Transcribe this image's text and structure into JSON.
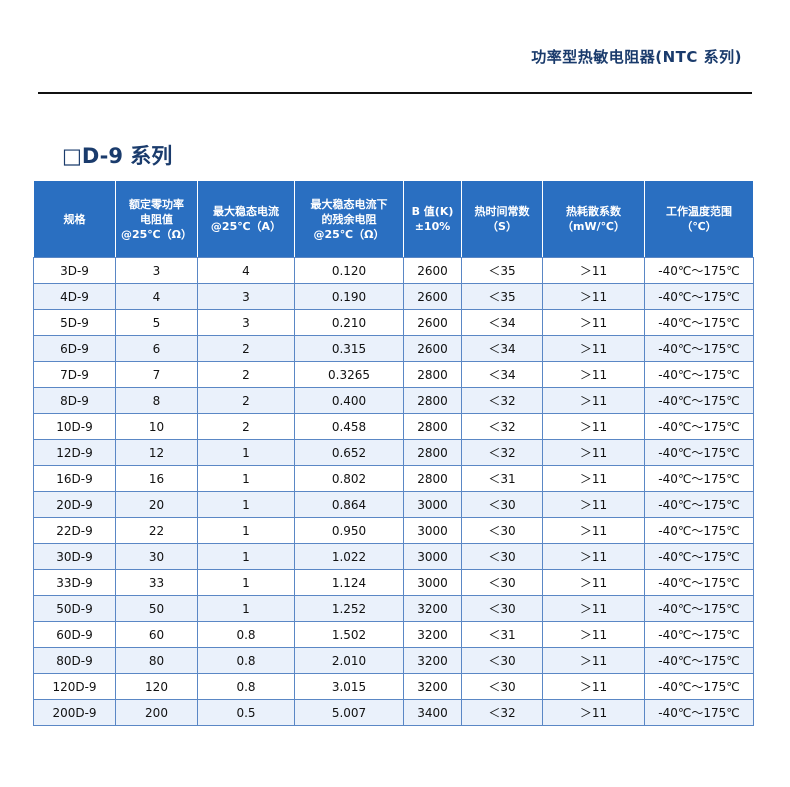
{
  "header": {
    "title": "功率型热敏电阻器(NTC 系列)"
  },
  "section": {
    "title": "□D-9  系列"
  },
  "table": {
    "columns": [
      "规格",
      "额定零功率\n电阻值\n@25℃（Ω）",
      "最大稳态电流\n@25℃（A）",
      "最大稳态电流下\n的残余电阻\n@25℃（Ω）",
      "B 值(K)\n±10%",
      "热时间常数\n（S）",
      "热耗散系数\n（mW/℃）",
      "工作温度范围\n（℃）"
    ],
    "rows": [
      [
        "3D-9",
        "3",
        "4",
        "0.120",
        "2600",
        "＜35",
        "＞11",
        "-40℃～175℃"
      ],
      [
        "4D-9",
        "4",
        "3",
        "0.190",
        "2600",
        "＜35",
        "＞11",
        "-40℃～175℃"
      ],
      [
        "5D-9",
        "5",
        "3",
        "0.210",
        "2600",
        "＜34",
        "＞11",
        "-40℃～175℃"
      ],
      [
        "6D-9",
        "6",
        "2",
        "0.315",
        "2600",
        "＜34",
        "＞11",
        "-40℃～175℃"
      ],
      [
        "7D-9",
        "7",
        "2",
        "0.3265",
        "2800",
        "＜34",
        "＞11",
        "-40℃～175℃"
      ],
      [
        "8D-9",
        "8",
        "2",
        "0.400",
        "2800",
        "＜32",
        "＞11",
        "-40℃～175℃"
      ],
      [
        "10D-9",
        "10",
        "2",
        "0.458",
        "2800",
        "＜32",
        "＞11",
        "-40℃～175℃"
      ],
      [
        "12D-9",
        "12",
        "1",
        "0.652",
        "2800",
        "＜32",
        "＞11",
        "-40℃～175℃"
      ],
      [
        "16D-9",
        "16",
        "1",
        "0.802",
        "2800",
        "＜31",
        "＞11",
        "-40℃～175℃"
      ],
      [
        "20D-9",
        "20",
        "1",
        "0.864",
        "3000",
        "＜30",
        "＞11",
        "-40℃～175℃"
      ],
      [
        "22D-9",
        "22",
        "1",
        "0.950",
        "3000",
        "＜30",
        "＞11",
        "-40℃～175℃"
      ],
      [
        "30D-9",
        "30",
        "1",
        "1.022",
        "3000",
        "＜30",
        "＞11",
        "-40℃～175℃"
      ],
      [
        "33D-9",
        "33",
        "1",
        "1.124",
        "3000",
        "＜30",
        "＞11",
        "-40℃～175℃"
      ],
      [
        "50D-9",
        "50",
        "1",
        "1.252",
        "3200",
        "＜30",
        "＞11",
        "-40℃～175℃"
      ],
      [
        "60D-9",
        "60",
        "0.8",
        "1.502",
        "3200",
        "＜31",
        "＞11",
        "-40℃～175℃"
      ],
      [
        "80D-9",
        "80",
        "0.8",
        "2.010",
        "3200",
        "＜30",
        "＞11",
        "-40℃～175℃"
      ],
      [
        "120D-9",
        "120",
        "0.8",
        "3.015",
        "3200",
        "＜30",
        "＞11",
        "-40℃～175℃"
      ],
      [
        "200D-9",
        "200",
        "0.5",
        "5.007",
        "3400",
        "＜32",
        "＞11",
        "-40℃～175℃"
      ]
    ]
  },
  "colors": {
    "header_bg": "#2a6fc1",
    "title_text": "#1a3b6c",
    "grid_line": "#5a87c5"
  }
}
